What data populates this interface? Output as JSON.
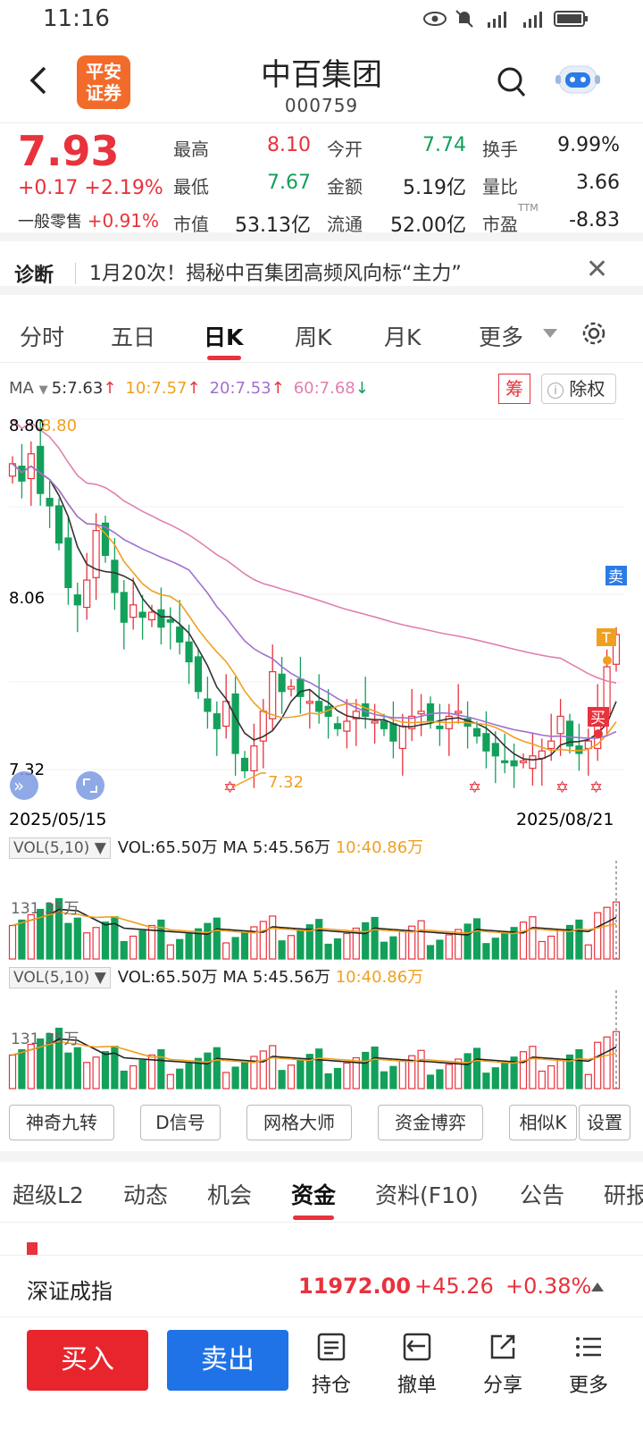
{
  "status": {
    "time": "11:16"
  },
  "header": {
    "title": "中百集团",
    "code": "000759",
    "logo_text": "平安证券"
  },
  "quote": {
    "price": "7.93",
    "change": "+0.17 +2.19%",
    "odd_lot_label": "一般零售",
    "odd_lot_value": "+0.91%",
    "fields": [
      {
        "label": "最高",
        "value": "8.10",
        "color": "red"
      },
      {
        "label": "今开",
        "value": "7.74",
        "color": "green"
      },
      {
        "label": "换手",
        "value": "9.99%",
        "color": "black"
      },
      {
        "label": "最低",
        "value": "7.67",
        "color": "green"
      },
      {
        "label": "金额",
        "value": "5.19亿",
        "color": "black"
      },
      {
        "label": "量比",
        "value": "3.66",
        "color": "black"
      },
      {
        "label": "市值",
        "value": "53.13亿",
        "color": "black"
      },
      {
        "label": "流通",
        "value": "52.00亿",
        "color": "black"
      },
      {
        "label": "市盈",
        "value": "-8.83",
        "color": "black",
        "sup": "TTM"
      }
    ]
  },
  "diagnosis": {
    "tag": "诊断",
    "text": "1月20次！揭秘中百集团高频风向标“主力”"
  },
  "ktabs": {
    "items": [
      "分时",
      "五日",
      "日K",
      "周K",
      "月K",
      "更多"
    ],
    "active": "日K"
  },
  "ma": {
    "label": "MA",
    "values": [
      {
        "text": "5:7.63",
        "color": "#333333",
        "arrow": "↑"
      },
      {
        "text": "10:7.57",
        "color": "#f0a020",
        "arrow": "↑"
      },
      {
        "text": "20:7.53",
        "color": "#a070d0",
        "arrow": "↑"
      },
      {
        "text": "60:7.68",
        "color": "#e080b0",
        "arrow": "↓"
      }
    ],
    "chip_label": "筹",
    "exright_label": "除权"
  },
  "kchart": {
    "y_high": "8.80",
    "y_high_marker": "8.80",
    "y_mid": "8.06",
    "y_low": "7.32",
    "low_marker": "7.32",
    "start_date": "2025/05/15",
    "end_date": "2025/08/21",
    "sell_tag": "卖",
    "t_tag": "T",
    "buy_tag": "买"
  },
  "volume_panels": [
    {
      "selector": "VOL(5,10)",
      "vol": "VOL:65.50万",
      "ma5": "MA 5:45.56万",
      "ma10": "10:40.86万",
      "axis": "131.35万"
    },
    {
      "selector": "VOL(5,10)",
      "vol": "VOL:65.50万",
      "ma5": "MA 5:45.56万",
      "ma10": "10:40.86万",
      "axis": "131.35万"
    }
  ],
  "tools": [
    "神奇九转",
    "D信号",
    "网格大师",
    "资金博弈",
    "相似K",
    "设置"
  ],
  "btabs": {
    "items": [
      "超级L2",
      "动态",
      "机会",
      "资金",
      "资料(F10)",
      "公告",
      "研报"
    ],
    "active": "资金"
  },
  "index": {
    "name": "深证成指",
    "value": "11972.00",
    "change": "+45.26",
    "pct": "+0.38%"
  },
  "bottom": {
    "buy": "买入",
    "sell": "卖出",
    "items": [
      "持仓",
      "撤单",
      "分享",
      "更多"
    ]
  }
}
